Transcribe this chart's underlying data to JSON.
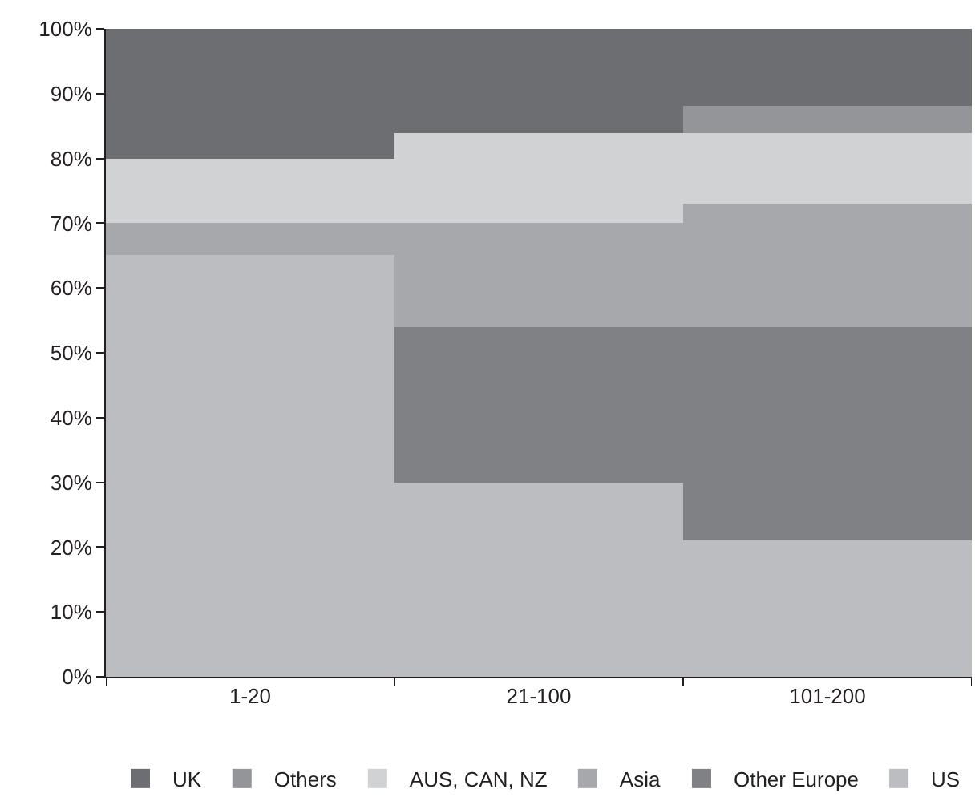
{
  "chart_data": {
    "type": "bar",
    "stacked": true,
    "categories": [
      "1-20",
      "21-100",
      "101-200"
    ],
    "series": [
      {
        "name": "US",
        "color": "#bcbdc0",
        "values": [
          65,
          30,
          21
        ]
      },
      {
        "name": "Other Europe",
        "color": "#808184",
        "values": [
          0,
          24,
          33
        ]
      },
      {
        "name": "Asia",
        "color": "#a7a8ab",
        "values": [
          5,
          16,
          19
        ]
      },
      {
        "name": "AUS, CAN, NZ",
        "color": "#d1d2d4",
        "values": [
          10,
          14,
          11
        ]
      },
      {
        "name": "Others",
        "color": "#939598",
        "values": [
          0,
          0,
          4
        ]
      },
      {
        "name": "UK",
        "color": "#6d6e71",
        "values": [
          20,
          16,
          12
        ]
      }
    ],
    "ylim": [
      0,
      100
    ],
    "yticks": [
      {
        "value": 0,
        "label": "0%"
      },
      {
        "value": 10,
        "label": "10%"
      },
      {
        "value": 20,
        "label": "20%"
      },
      {
        "value": 30,
        "label": "30%"
      },
      {
        "value": 40,
        "label": "40%"
      },
      {
        "value": 50,
        "label": "50%"
      },
      {
        "value": 60,
        "label": "60%"
      },
      {
        "value": 70,
        "label": "70%"
      },
      {
        "value": 80,
        "label": "80%"
      },
      {
        "value": 90,
        "label": "90%"
      },
      {
        "value": 100,
        "label": "100%"
      }
    ],
    "legend": "bottom"
  }
}
